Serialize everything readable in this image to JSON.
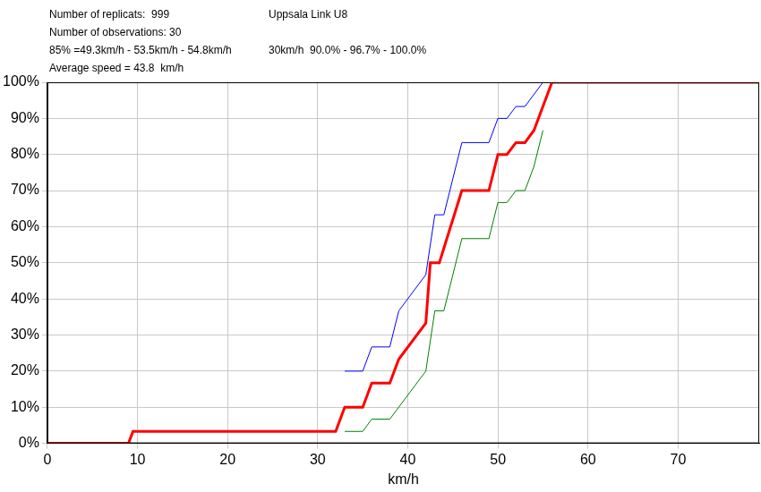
{
  "chart_data": {
    "type": "line",
    "title": "Uppsala Link U8",
    "subtitle": "30km/h  90.0% - 96.7% - 100.0%",
    "annotations": [
      "Number of replicats:  999",
      "Number of observations: 30",
      "85% =49.3km/h - 53.5km/h - 54.8km/h",
      "Average speed = 43.8  km/h"
    ],
    "x_label": "km/h",
    "xlim": [
      0,
      79
    ],
    "xticks": [
      0,
      10,
      20,
      30,
      40,
      50,
      60,
      70
    ],
    "ylim": [
      0,
      100
    ],
    "yticks": [
      {
        "value": 0,
        "label": "0%"
      },
      {
        "value": 10,
        "label": "10%"
      },
      {
        "value": 20,
        "label": "20%"
      },
      {
        "value": 30,
        "label": "30%"
      },
      {
        "value": 40,
        "label": "40%"
      },
      {
        "value": 50,
        "label": "50%"
      },
      {
        "value": 60,
        "label": "60%"
      },
      {
        "value": 70,
        "label": "70%"
      },
      {
        "value": 80,
        "label": "80%"
      },
      {
        "value": 90,
        "label": "90%"
      },
      {
        "value": 100,
        "label": "100%"
      }
    ],
    "grid": true,
    "series": [
      {
        "color": "#ff0000",
        "x": [
          0,
          9,
          9.5,
          32,
          33,
          35,
          36,
          38,
          39,
          42,
          42.5,
          43.5,
          46,
          49,
          50,
          51,
          52,
          53,
          54,
          56,
          79
        ],
        "values": [
          0,
          0,
          3.3,
          3.3,
          10,
          10,
          16.7,
          16.7,
          23.3,
          33.3,
          50,
          50,
          70,
          70,
          80,
          80,
          83.3,
          83.3,
          86.7,
          100,
          100
        ]
      },
      {
        "color": "#0000ff",
        "x": [
          33,
          35,
          36,
          38,
          39,
          42,
          43,
          44,
          46,
          49,
          50,
          51,
          52,
          53,
          55
        ],
        "values": [
          20,
          20,
          26.7,
          26.7,
          36.7,
          46.7,
          63.3,
          63.3,
          83.3,
          83.3,
          90,
          90,
          93.3,
          93.3,
          100
        ]
      },
      {
        "color": "#008000",
        "x": [
          33,
          35,
          36,
          38,
          42,
          43,
          44,
          46,
          49,
          50,
          51,
          52,
          53,
          54,
          55
        ],
        "values": [
          3.3,
          3.3,
          6.7,
          6.7,
          20,
          36.7,
          36.7,
          56.7,
          56.7,
          66.7,
          66.7,
          70,
          70,
          76.7,
          86.7
        ]
      }
    ]
  }
}
